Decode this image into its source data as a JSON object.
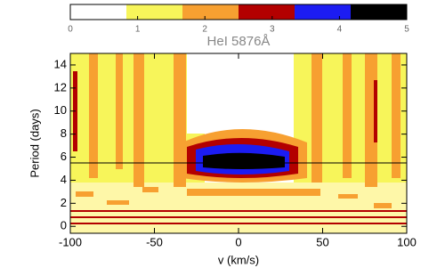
{
  "chart_data": {
    "type": "contour",
    "title": "HeI 5876Å",
    "x_label": "v (km/s)",
    "y_label": "Period (days)",
    "xlim": [
      -100,
      100
    ],
    "xticks": [
      -100,
      -50,
      0,
      50,
      100
    ],
    "ylim": [
      -0.6,
      15
    ],
    "yticks": [
      0,
      2,
      4,
      6,
      8,
      10,
      12,
      14
    ],
    "hline": 5.5,
    "colorbar": {
      "lim": [
        0,
        5
      ],
      "ticks": [
        0,
        1,
        2,
        3,
        4,
        5
      ],
      "colors": [
        "#ffffff",
        "#f7f55a",
        "#f7a031",
        "#b30000",
        "#1c1cf2",
        "#000000"
      ]
    }
  }
}
